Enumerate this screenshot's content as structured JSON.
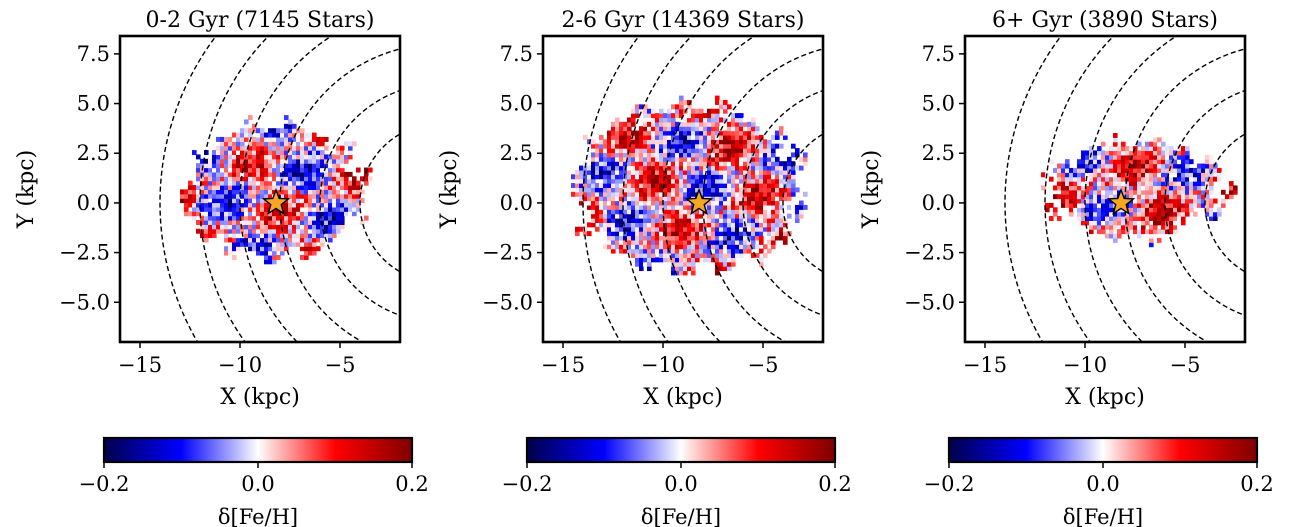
{
  "chart_data": [
    {
      "type": "heatmap",
      "title": "0-2 Gyr (7145 Stars)",
      "xlabel": "X (kpc)",
      "ylabel": "Y (kpc)",
      "xlim": [
        -16,
        -2
      ],
      "ylim": [
        -7,
        8.4
      ],
      "xticks": [
        -15,
        -10,
        -5
      ],
      "xtick_labels": [
        "−15",
        "−10",
        "−5"
      ],
      "yticks": [
        -5.0,
        -2.5,
        0.0,
        2.5,
        5.0,
        7.5
      ],
      "ytick_labels": [
        "−5.0",
        "−2.5",
        "0.0",
        "2.5",
        "5.0",
        "7.5"
      ],
      "sun": {
        "x": -8.2,
        "y": 0.0
      },
      "rings_kpc": [
        2,
        4,
        6,
        8,
        10,
        12,
        14
      ],
      "colorbar": {
        "label": "δ[Fe/H]",
        "range": [
          -0.2,
          0.2
        ],
        "ticks": [
          -0.2,
          0.0,
          0.2
        ],
        "tick_labels": [
          "−0.2",
          "0.0",
          "0.2"
        ]
      },
      "region": {
        "x": [
          -13.2,
          -3.4
        ],
        "y": [
          -3.5,
          4.5
        ]
      },
      "blob": {
        "cx": -8.4,
        "cy": 0.5,
        "rx": 4.8,
        "ry": 3.5
      },
      "fill_level": 0.72,
      "bias": 0.2
    },
    {
      "type": "heatmap",
      "title": "2-6 Gyr (14369 Stars)",
      "xlabel": "X (kpc)",
      "ylabel": "Y (kpc)",
      "xlim": [
        -16,
        -2
      ],
      "ylim": [
        -7,
        8.4
      ],
      "xticks": [
        -15,
        -10,
        -5
      ],
      "xtick_labels": [
        "−15",
        "−10",
        "−5"
      ],
      "yticks": [
        -5.0,
        -2.5,
        0.0,
        2.5,
        5.0,
        7.5
      ],
      "ytick_labels": [
        "−5.0",
        "−2.5",
        "0.0",
        "2.5",
        "5.0",
        "7.5"
      ],
      "sun": {
        "x": -8.2,
        "y": 0.0
      },
      "rings_kpc": [
        2,
        4,
        6,
        8,
        10,
        12,
        14
      ],
      "colorbar": {
        "label": "δ[Fe/H]",
        "range": [
          -0.2,
          0.2
        ],
        "ticks": [
          -0.2,
          0.0,
          0.2
        ],
        "tick_labels": [
          "−0.2",
          "0.0",
          "0.2"
        ]
      },
      "region": {
        "x": [
          -14.6,
          -2.9
        ],
        "y": [
          -4.5,
          6.0
        ]
      },
      "blob": {
        "cx": -8.8,
        "cy": 0.6,
        "rx": 5.8,
        "ry": 4.2
      },
      "fill_level": 0.82,
      "bias": 0.3
    },
    {
      "type": "heatmap",
      "title": "6+ Gyr (3890 Stars)",
      "xlabel": "X (kpc)",
      "ylabel": "Y (kpc)",
      "xlim": [
        -16,
        -2
      ],
      "ylim": [
        -7,
        8.4
      ],
      "xticks": [
        -15,
        -10,
        -5
      ],
      "xtick_labels": [
        "−15",
        "−10",
        "−5"
      ],
      "yticks": [
        -5.0,
        -2.5,
        0.0,
        2.5,
        5.0,
        7.5
      ],
      "ytick_labels": [
        "−5.0",
        "−2.5",
        "0.0",
        "2.5",
        "5.0",
        "7.5"
      ],
      "sun": {
        "x": -8.2,
        "y": 0.0
      },
      "rings_kpc": [
        2,
        4,
        6,
        8,
        10,
        12,
        14
      ],
      "colorbar": {
        "label": "δ[Fe/H]",
        "range": [
          -0.2,
          0.2
        ],
        "ticks": [
          -0.2,
          0.0,
          0.2
        ],
        "tick_labels": [
          "−0.2",
          "0.0",
          "0.2"
        ]
      },
      "region": {
        "x": [
          -13.2,
          -2.6
        ],
        "y": [
          -3.3,
          4.0
        ]
      },
      "blob": {
        "cx": -7.6,
        "cy": 0.6,
        "rx": 4.9,
        "ry": 2.6
      },
      "fill_level": 0.66,
      "bias": 0.55
    }
  ]
}
